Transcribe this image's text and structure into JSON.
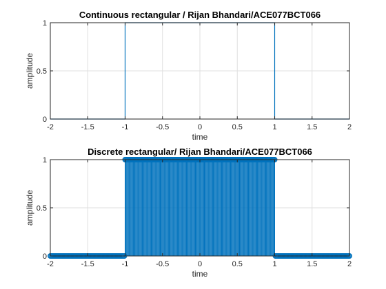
{
  "chart_data": [
    {
      "type": "line",
      "title": "Continuous rectangular / Rijan Bhandari/ACE077BCT066",
      "xlabel": "time",
      "ylabel": "amplitude",
      "xlim": [
        -2,
        2
      ],
      "ylim": [
        0,
        1
      ],
      "xticks": [
        -2,
        -1.5,
        -1,
        -0.5,
        0,
        0.5,
        1,
        1.5,
        2
      ],
      "yticks": [
        0,
        0.5,
        1
      ],
      "grid": true,
      "color": "#0072BD",
      "series": [
        {
          "x": [
            -2,
            -1,
            -1,
            1,
            1,
            2
          ],
          "y": [
            0,
            0,
            1,
            1,
            0,
            0
          ]
        }
      ]
    },
    {
      "type": "stem",
      "title": "Discrete rectangular/ Rijan Bhandari/ACE077BCT066",
      "xlabel": "time",
      "ylabel": "amplitude",
      "xlim": [
        -2,
        2
      ],
      "ylim": [
        0,
        1
      ],
      "xticks": [
        -2,
        -1.5,
        -1,
        -0.5,
        0,
        0.5,
        1,
        1.5,
        2
      ],
      "yticks": [
        0,
        0.5,
        1
      ],
      "grid": true,
      "color": "#0072BD",
      "stem": {
        "x_start": -2,
        "x_end": 2,
        "step": 0.01,
        "high_from": -1,
        "high_to": 1,
        "high_value": 1,
        "low_value": 0
      }
    }
  ]
}
